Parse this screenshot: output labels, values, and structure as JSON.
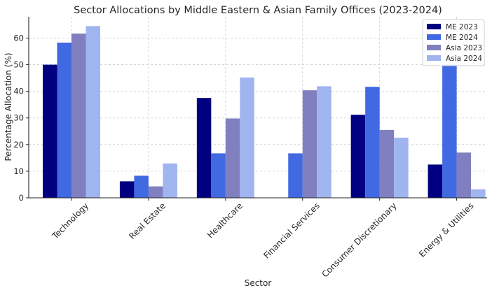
{
  "chart_data": {
    "type": "bar",
    "title": "Sector Allocations by Middle Eastern & Asian Family Offices (2023-2024)",
    "xlabel": "Sector",
    "ylabel": "Percentage Allocation (%)",
    "ylim": [
      0,
      68
    ],
    "yticks": [
      0,
      10,
      20,
      30,
      40,
      50,
      60
    ],
    "grid": true,
    "legend_position": "top-right",
    "categories": [
      "Technology",
      "Real Estate",
      "Healthcare",
      "Financial Services",
      "Consumer Discretionary",
      "Energy & Utilities"
    ],
    "series": [
      {
        "name": "ME 2023",
        "color": "#000080",
        "values": [
          50.0,
          6.2,
          37.5,
          0,
          31.2,
          12.5
        ]
      },
      {
        "name": "ME 2024",
        "color": "#4169E1",
        "values": [
          58.3,
          8.3,
          16.7,
          16.7,
          41.7,
          50.0
        ]
      },
      {
        "name": "Asia 2023",
        "color": "#8080C0",
        "values": [
          61.7,
          4.3,
          29.8,
          40.4,
          25.5,
          17.0
        ]
      },
      {
        "name": "Asia 2024",
        "color": "#A0B4F0",
        "values": [
          64.5,
          12.9,
          45.2,
          41.9,
          22.6,
          3.2
        ]
      }
    ]
  }
}
